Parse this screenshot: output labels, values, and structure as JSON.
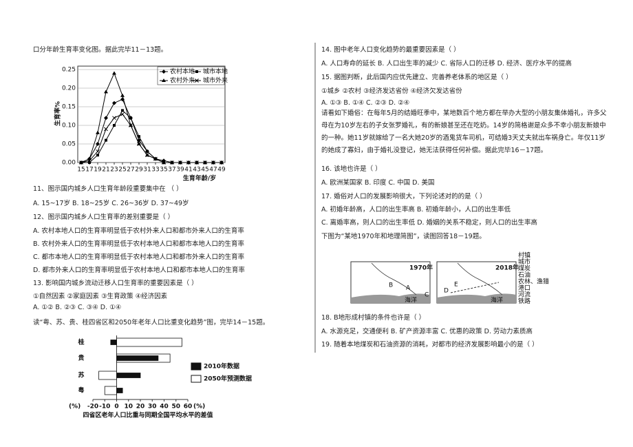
{
  "left": {
    "lines": [
      "口分年龄生育率变化图。据此完毕11－13题。"
    ],
    "questions": [
      "11、图示国内城乡人口生育年龄段重要集中在 （    ）",
      "A. 15~17岁 B. 18~25岁     C. 26~36岁  D. 37~49岁",
      "12、图示国内城乡人口生育率的差别重要是（    ）",
      "A. 农村本地人口的生育率明显低于农村外来人口和都市外来人口的生育率",
      "B. 农村外来人口的生育率明显低于农村本地人口和都市本地人口的生育率",
      "C. 都市本地人口的生育率明显低于农村本地人口和都市外来人口的生育率",
      "D. 都市外来人口的生育率明显低于农村本地人口和都市本地人口的生育率",
      "13. 影响国内城乡流动迁移人口生育率的重要因素是（    ）",
      "①自然因素      ②家庭因素      ③生育政策      ④经济因素",
      "A. ①②        B. ②③        C. ③④        D. ①④",
      "读“粤、苏、贵、桂四省区和2050年老年人口比重变化趋势”图，完毕14－15题。"
    ]
  },
  "line_chart": {
    "type": "line",
    "ylabel": "生育率%",
    "xlabel": "生育年龄/岁",
    "x": [
      15,
      17,
      19,
      21,
      23,
      25,
      27,
      29,
      31,
      33,
      35,
      37,
      39,
      41,
      43,
      45,
      47,
      49
    ],
    "xticks": [
      15,
      17,
      19,
      21,
      23,
      25,
      27,
      29,
      31,
      33,
      35,
      37,
      39,
      41,
      43,
      45,
      47,
      49
    ],
    "xlim": [
      15,
      49
    ],
    "ylim": [
      0,
      0.25
    ],
    "yticks": [
      {
        "value": 0,
        "label": "0.00"
      },
      0.05,
      {
        "value": 0.1,
        "label": "0.10"
      },
      0.15,
      {
        "value": 0.2,
        "label": "0.20"
      },
      0.25
    ],
    "series": [
      {
        "name": "农村本地",
        "color": "#000",
        "marker": "diamond",
        "values": [
          0,
          0.01,
          0.05,
          0.12,
          0.16,
          0.17,
          0.12,
          0.06,
          0.03,
          0.01,
          0.005,
          0,
          0,
          0,
          0,
          0,
          0,
          0
        ]
      },
      {
        "name": "城市本地",
        "color": "#000",
        "marker": "square",
        "values": [
          0,
          0,
          0.02,
          0.06,
          0.1,
          0.14,
          0.12,
          0.07,
          0.03,
          0.01,
          0,
          0,
          0,
          0,
          0,
          0,
          0,
          0
        ]
      },
      {
        "name": "农村外来",
        "color": "#000",
        "marker": "triangle",
        "values": [
          0,
          0.01,
          0.08,
          0.19,
          0.24,
          0.18,
          0.1,
          0.05,
          0.02,
          0.01,
          0,
          0,
          0,
          0,
          0,
          0,
          0,
          0
        ]
      },
      {
        "name": "城市外来",
        "color": "#000",
        "marker": "cross",
        "values": [
          0,
          0.005,
          0.03,
          0.09,
          0.12,
          0.13,
          0.1,
          0.05,
          0.02,
          0.01,
          0,
          0,
          0,
          0,
          0,
          0,
          0,
          0
        ]
      }
    ]
  },
  "bar_chart": {
    "type": "bar",
    "orientation": "horizontal",
    "categories": [
      "桂",
      "贵",
      "苏",
      "粤"
    ],
    "xlim": [
      -20,
      60
    ],
    "xticks": [
      -20,
      -10,
      0,
      10,
      20,
      30,
      40,
      50,
      60
    ],
    "unit": "(%)",
    "caption": "四省区老年人口比重与同期全国平均水平的差值",
    "series": [
      {
        "name": "2010年数据",
        "color": "#111",
        "values": [
          -5,
          35,
          20,
          5
        ]
      },
      {
        "name": "2050年预测数据",
        "color": "#fff",
        "values": [
          55,
          45,
          -15,
          -10
        ]
      }
    ]
  },
  "right": {
    "lines": [
      "14. 图中老年人口变化趋势的最重要因素是（       ）",
      "A. 人口寿命的延长     B. 人口出生率的减少     C. 省际人口的迁移     D. 经济、医疗水平的提高",
      "15. 据图判断，此后国内应优先建立、完善养老体系的地区是（       ）",
      "①城乡     ②农村    ③经济发达省份       ④经济欠发达省份",
      "A.  ①③        B. ①④         C. ②③         D. ②④"
    ],
    "paragraph": "请看如下婚俗：在每年5月的结婚旺季中，某地数百个地方都在举办大型的小朋友集体婚礼，许多父母在为10岁左右的子女张罗婚礼，有的新娘甚至还在吃奶。14岁的简格谢是众多不幸小朋友新娘中的一种。她11岁就嫁给了一名大她20岁的酒鬼货车司机，可结婚3天丈夫就出车祸身亡。年仅11岁的她成了寡妇，由于婚礼没登记，她无法获得任何补偿。据此完毕16－17题。",
    "lines2": [
      "16. 该地也许是（      ）",
      "A. 欧洲某国家         B. 印度           C. 中国           D. 美国",
      "17. 婚俗对人口的发展影响很大，下列论述对的的是（        ）",
      "A. 初婚年龄高，人口的出生率高         B. 初婚年龄小，人口的出生率低",
      "C. 离婚率高，则人口的出生率低         D. 婚姻的关系不稳定，则人口的出生率高",
      "下图为“某地1970年和地理简图”，读图回答18－19题。"
    ],
    "lines3": [
      "18. B地形成村镇的条件也许是（      ）",
      "A. 水源充足，交通便利       B. 矿产资源丰富       C. 优惠的政策       D. 劳动力素质高",
      "19. 随着本地煤炭和石油资源的消耗，对都市的经济发展影响最小的是（       ）"
    ]
  },
  "map": {
    "panels": [
      "1970年",
      "2018年"
    ],
    "sea": "海洋",
    "points": [
      "A",
      "B",
      "C",
      "D",
      "E"
    ],
    "legend": [
      "村镇",
      "城市",
      "煤炭",
      "石油",
      "农林、渔猎",
      "港口",
      "河流",
      "铁路"
    ]
  }
}
